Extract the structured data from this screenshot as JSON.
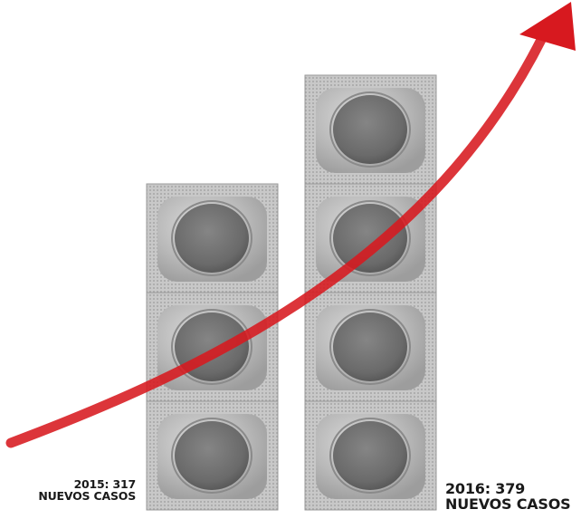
{
  "chart_data": {
    "type": "bar",
    "style": "pictogram",
    "icon": "condom-packet-icon",
    "categories": [
      "2015",
      "2016"
    ],
    "values": [
      317,
      379
    ],
    "unit": "NUEVOS CASOS",
    "packets_per_bar": [
      3,
      4
    ],
    "trend_arrow": true,
    "colors": {
      "arrow": "#d7191f",
      "packet_border": "#9a9a9a",
      "packet_fill": "#bdbdbd",
      "circle": "#6f6f6f",
      "text": "#1a1a1a"
    }
  },
  "labels": [
    {
      "year": "2015: 317",
      "cases": "NUEVOS CASOS"
    },
    {
      "year": "2016: 379",
      "cases": "NUEVOS CASOS"
    }
  ]
}
